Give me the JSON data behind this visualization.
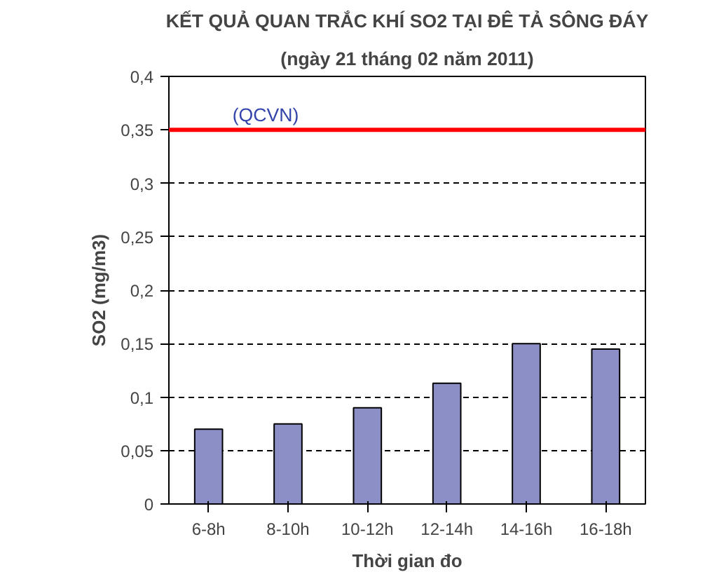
{
  "chart_data": {
    "type": "bar",
    "title": "KẾT QUẢ QUAN TRẮC KHÍ SO2 TẠI ĐÊ TẢ SÔNG ĐÁY",
    "subtitle": "(ngày 21 tháng 02 năm 2011)",
    "xlabel": "Thời gian đo",
    "ylabel": "SO2 (mg/m3)",
    "categories": [
      "6-8h",
      "8-10h",
      "10-12h",
      "12-14h",
      "14-16h",
      "16-18h"
    ],
    "series": [
      {
        "color": "#8c8fc6",
        "values": [
          0.07,
          0.075,
          0.09,
          0.113,
          0.15,
          0.145
        ]
      }
    ],
    "ylim": [
      0,
      0.4
    ],
    "yticks": [
      0,
      {
        "value": 0.05,
        "label": "0,05"
      },
      {
        "value": 0.1,
        "label": "0,1"
      },
      {
        "value": 0.15,
        "label": "0,15"
      },
      {
        "value": 0.2,
        "label": "0,2"
      },
      {
        "value": 0.25,
        "label": "0,25"
      },
      {
        "value": 0.3,
        "label": "0,3"
      },
      {
        "value": 0.35,
        "label": "0,35"
      },
      {
        "value": 0.4,
        "label": "0,4"
      }
    ],
    "ref_lines": [
      {
        "axis": "y",
        "value": 0.35,
        "label": "(QCVN)",
        "color": "#ff0000"
      }
    ],
    "grid": "y"
  }
}
